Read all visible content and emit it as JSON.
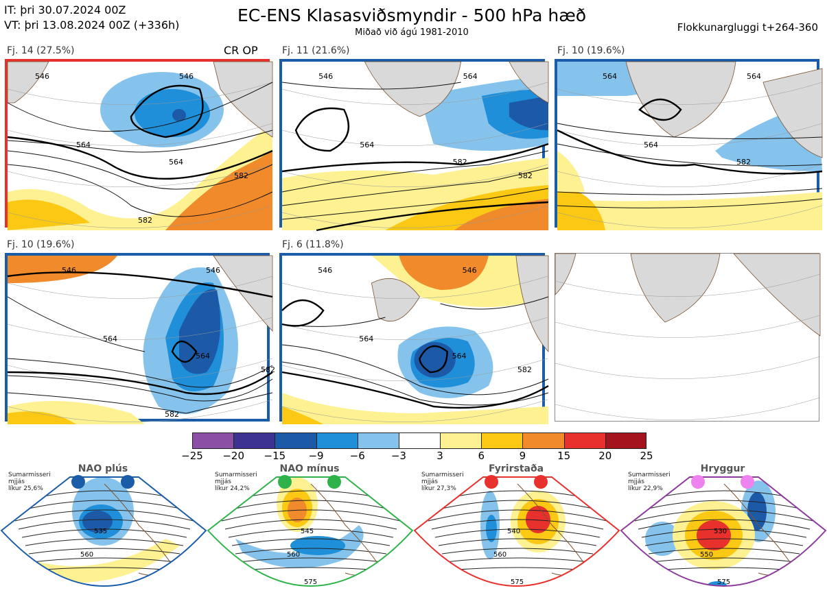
{
  "header": {
    "init_line": "IT: þri 30.07.2024 00Z",
    "valid_line": "VT: þri 13.08.2024 00Z  (+336h)",
    "title": "EC-ENS Klasasviðsmyndir - 500 hPa hæð",
    "subtitle": "Miðað við ágú 1981-2010",
    "window": "Flokkunargluggi t+264-360"
  },
  "panels": [
    {
      "label": "Fj. 14 (27.5%)",
      "tag": "CR OP",
      "border_color": "#e8302d",
      "contour_labels": [
        "546",
        "546",
        "564",
        "564",
        "582",
        "582"
      ]
    },
    {
      "label": "Fj. 11 (21.6%)",
      "tag": "",
      "border_color": "#1a5ca8",
      "contour_labels": [
        "546",
        "564",
        "564",
        "582",
        "582"
      ]
    },
    {
      "label": "Fj. 10 (19.6%)",
      "tag": "",
      "border_color": "#1a5ca8",
      "contour_labels": [
        "564",
        "564",
        "564",
        "582"
      ]
    },
    {
      "label": "Fj. 10 (19.6%)",
      "tag": "",
      "border_color": "#1a5ca8",
      "contour_labels": [
        "546",
        "546",
        "564",
        "564",
        "582",
        "582"
      ]
    },
    {
      "label": "Fj. 6 (11.8%)",
      "tag": "",
      "border_color": "#1a5ca8",
      "contour_labels": [
        "546",
        "546",
        "564",
        "564",
        "582"
      ]
    },
    {
      "label": "",
      "tag": "",
      "border_color": "#888888",
      "contour_labels": []
    }
  ],
  "colorbar": {
    "ticks": [
      "−25",
      "−20",
      "−15",
      "−9",
      "−6",
      "−3",
      "3",
      "6",
      "9",
      "15",
      "20",
      "25"
    ],
    "colors": [
      "#8b4fa6",
      "#3d3291",
      "#1c5aa8",
      "#1e8fd8",
      "#85c3ec",
      "#ffffff",
      "#fdf192",
      "#fbc814",
      "#f08a2a",
      "#e8302d",
      "#a5141c"
    ]
  },
  "regimes": [
    {
      "name": "NAO plús",
      "season": "Sumarmisseri",
      "smoothing": "mjjás",
      "likelihood": "líkur 25,6%",
      "border_color": "#1a5ca8",
      "dot_color": "#1a5ca8",
      "contour_labels": [
        "535",
        "560"
      ]
    },
    {
      "name": "NAO mínus",
      "season": "Sumarmisseri",
      "smoothing": "mjjás",
      "likelihood": "líkur 24,2%",
      "border_color": "#2db34a",
      "dot_color": "#2db34a",
      "contour_labels": [
        "545",
        "560",
        "575"
      ]
    },
    {
      "name": "Fyrirstaða",
      "season": "Sumarmisseri",
      "smoothing": "mjjás",
      "likelihood": "líkur 27,3%",
      "border_color": "#e8302d",
      "dot_color": "#e8302d",
      "contour_labels": [
        "540",
        "560",
        "575"
      ]
    },
    {
      "name": "Hryggur",
      "season": "Sumarmisseri",
      "smoothing": "mjjás",
      "likelihood": "líkur 22,9%",
      "border_color": "#8b3a9c",
      "dot_color": "#ee82ee",
      "contour_labels": [
        "530",
        "550",
        "575"
      ]
    }
  ]
}
